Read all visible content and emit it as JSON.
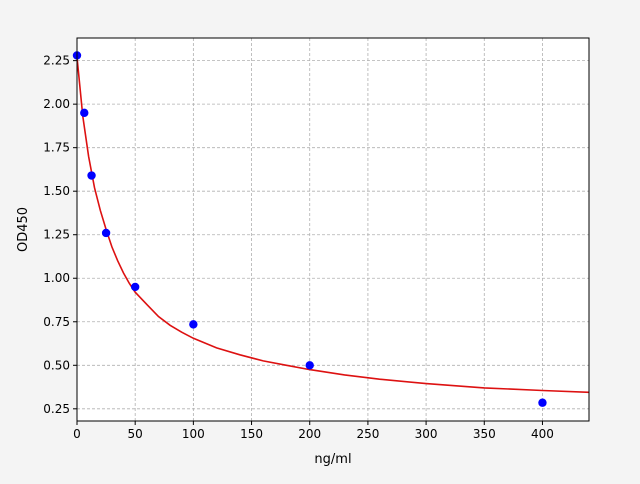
{
  "chart_data": {
    "type": "scatter",
    "title": "",
    "xlabel": "ng/ml",
    "ylabel": "OD450",
    "xlim": [
      0,
      440
    ],
    "ylim": [
      0.18,
      2.38
    ],
    "x_ticks": [
      0,
      50,
      100,
      150,
      200,
      250,
      300,
      350,
      400
    ],
    "y_ticks": [
      0.25,
      0.5,
      0.75,
      1.0,
      1.25,
      1.5,
      1.75,
      2.0,
      2.25
    ],
    "grid": true,
    "series": [
      {
        "kind": "points",
        "color": "#0000ff",
        "x": [
          0,
          6.25,
          12.5,
          25,
          50,
          100,
          200,
          400
        ],
        "y": [
          2.28,
          1.95,
          1.59,
          1.26,
          0.95,
          0.735,
          0.5,
          0.285
        ]
      },
      {
        "kind": "fit-curve",
        "color": "#dd1111",
        "x": [
          0,
          5,
          10,
          15,
          20,
          25,
          30,
          35,
          40,
          45,
          50,
          60,
          70,
          80,
          90,
          100,
          120,
          140,
          160,
          180,
          200,
          230,
          260,
          300,
          350,
          400,
          440
        ],
        "y": [
          2.27,
          1.93,
          1.7,
          1.52,
          1.39,
          1.28,
          1.18,
          1.1,
          1.03,
          0.97,
          0.92,
          0.85,
          0.78,
          0.73,
          0.69,
          0.655,
          0.6,
          0.56,
          0.525,
          0.5,
          0.475,
          0.445,
          0.42,
          0.395,
          0.37,
          0.355,
          0.345
        ]
      }
    ]
  }
}
